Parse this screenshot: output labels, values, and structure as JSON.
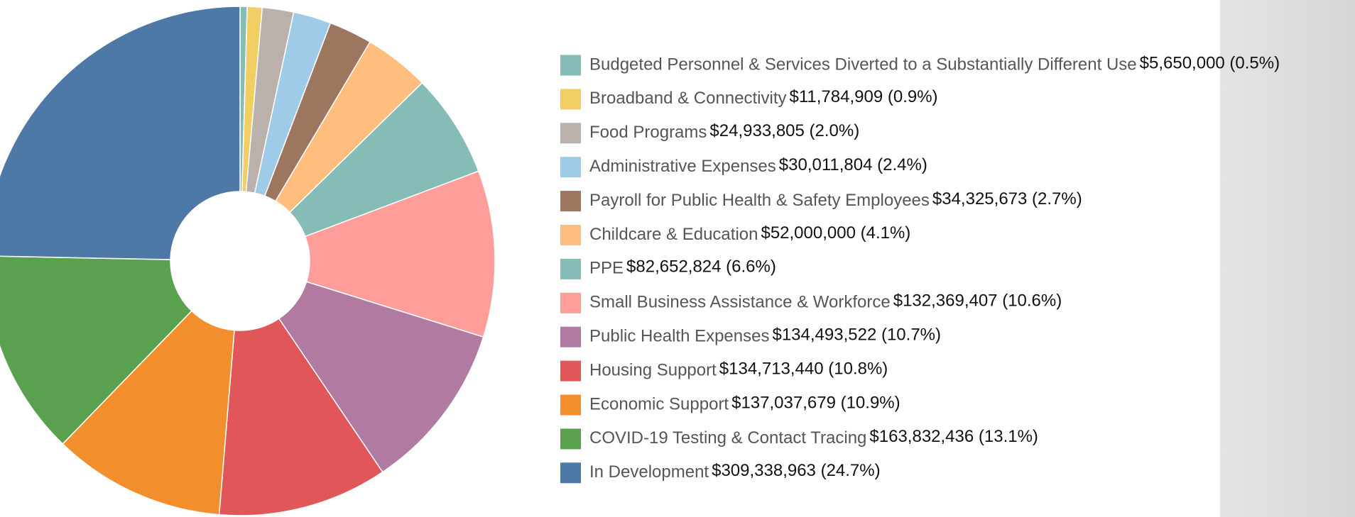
{
  "chart_data": {
    "type": "pie",
    "donut": true,
    "categories": [
      "Budgeted Personnel & Services Diverted to a Substantially Different Use",
      "Broadband & Connectivity",
      "Food Programs",
      "Administrative Expenses",
      "Payroll for Public Health & Safety Employees",
      "Childcare & Education",
      "PPE",
      "Small Business Assistance & Workforce",
      "Public Health Expenses",
      "Housing Support",
      "Economic Support",
      "COVID-19 Testing & Contact Tracing",
      "In Development"
    ],
    "values": [
      5650000,
      11784909,
      24933805,
      30011804,
      34325673,
      52000000,
      82652824,
      132369407,
      134493522,
      134713440,
      137037679,
      163832436,
      309338963
    ],
    "value_labels": [
      "$5,650,000 (0.5%)",
      "$11,784,909 (0.9%)",
      "$24,933,805 (2.0%)",
      "$30,011,804 (2.4%)",
      "$34,325,673 (2.7%)",
      "$52,000,000 (4.1%)",
      "$82,652,824 (6.6%)",
      "$132,369,407 (10.6%)",
      "$134,493,522 (10.7%)",
      "$134,713,440 (10.8%)",
      "$137,037,679 (10.9%)",
      "$163,832,436 (13.1%)",
      "$309,338,963 (24.7%)"
    ],
    "colors": [
      "#86bcb6",
      "#f1ce63",
      "#bab0ac",
      "#a0cbe8",
      "#9d7660",
      "#ffbe7d",
      "#86bcb6",
      "#ff9d9a",
      "#b07aa1",
      "#e15759",
      "#f28e2b",
      "#59a14f",
      "#4e79a7"
    ],
    "legend": "right"
  }
}
